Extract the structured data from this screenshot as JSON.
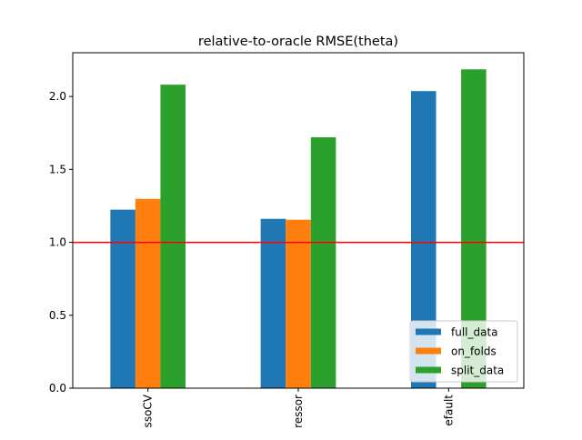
{
  "chart_data": {
    "type": "bar",
    "title": "relative-to-oracle RMSE(theta)",
    "xlabel": "",
    "ylabel": "",
    "categories": [
      "ssoCV",
      "ressor",
      "efault"
    ],
    "series": [
      {
        "name": "full_data",
        "color": "#1f77b4",
        "values": [
          1.224,
          1.161,
          2.037
        ]
      },
      {
        "name": "on_folds",
        "color": "#ff7f0e",
        "values": [
          1.298,
          1.155,
          null
        ]
      },
      {
        "name": "split_data",
        "color": "#2ca02c",
        "values": [
          2.081,
          1.72,
          2.186
        ]
      }
    ],
    "ylim": [
      0,
      2.3
    ],
    "yticks": [
      0.0,
      0.5,
      1.0,
      1.5,
      2.0
    ],
    "ytick_labels": [
      "0.0",
      "0.5",
      "1.0",
      "1.5",
      "2.0"
    ],
    "reference_line": {
      "y": 1.0,
      "color": "#ff0000"
    },
    "legend_position": "lower-right",
    "grid": false
  }
}
